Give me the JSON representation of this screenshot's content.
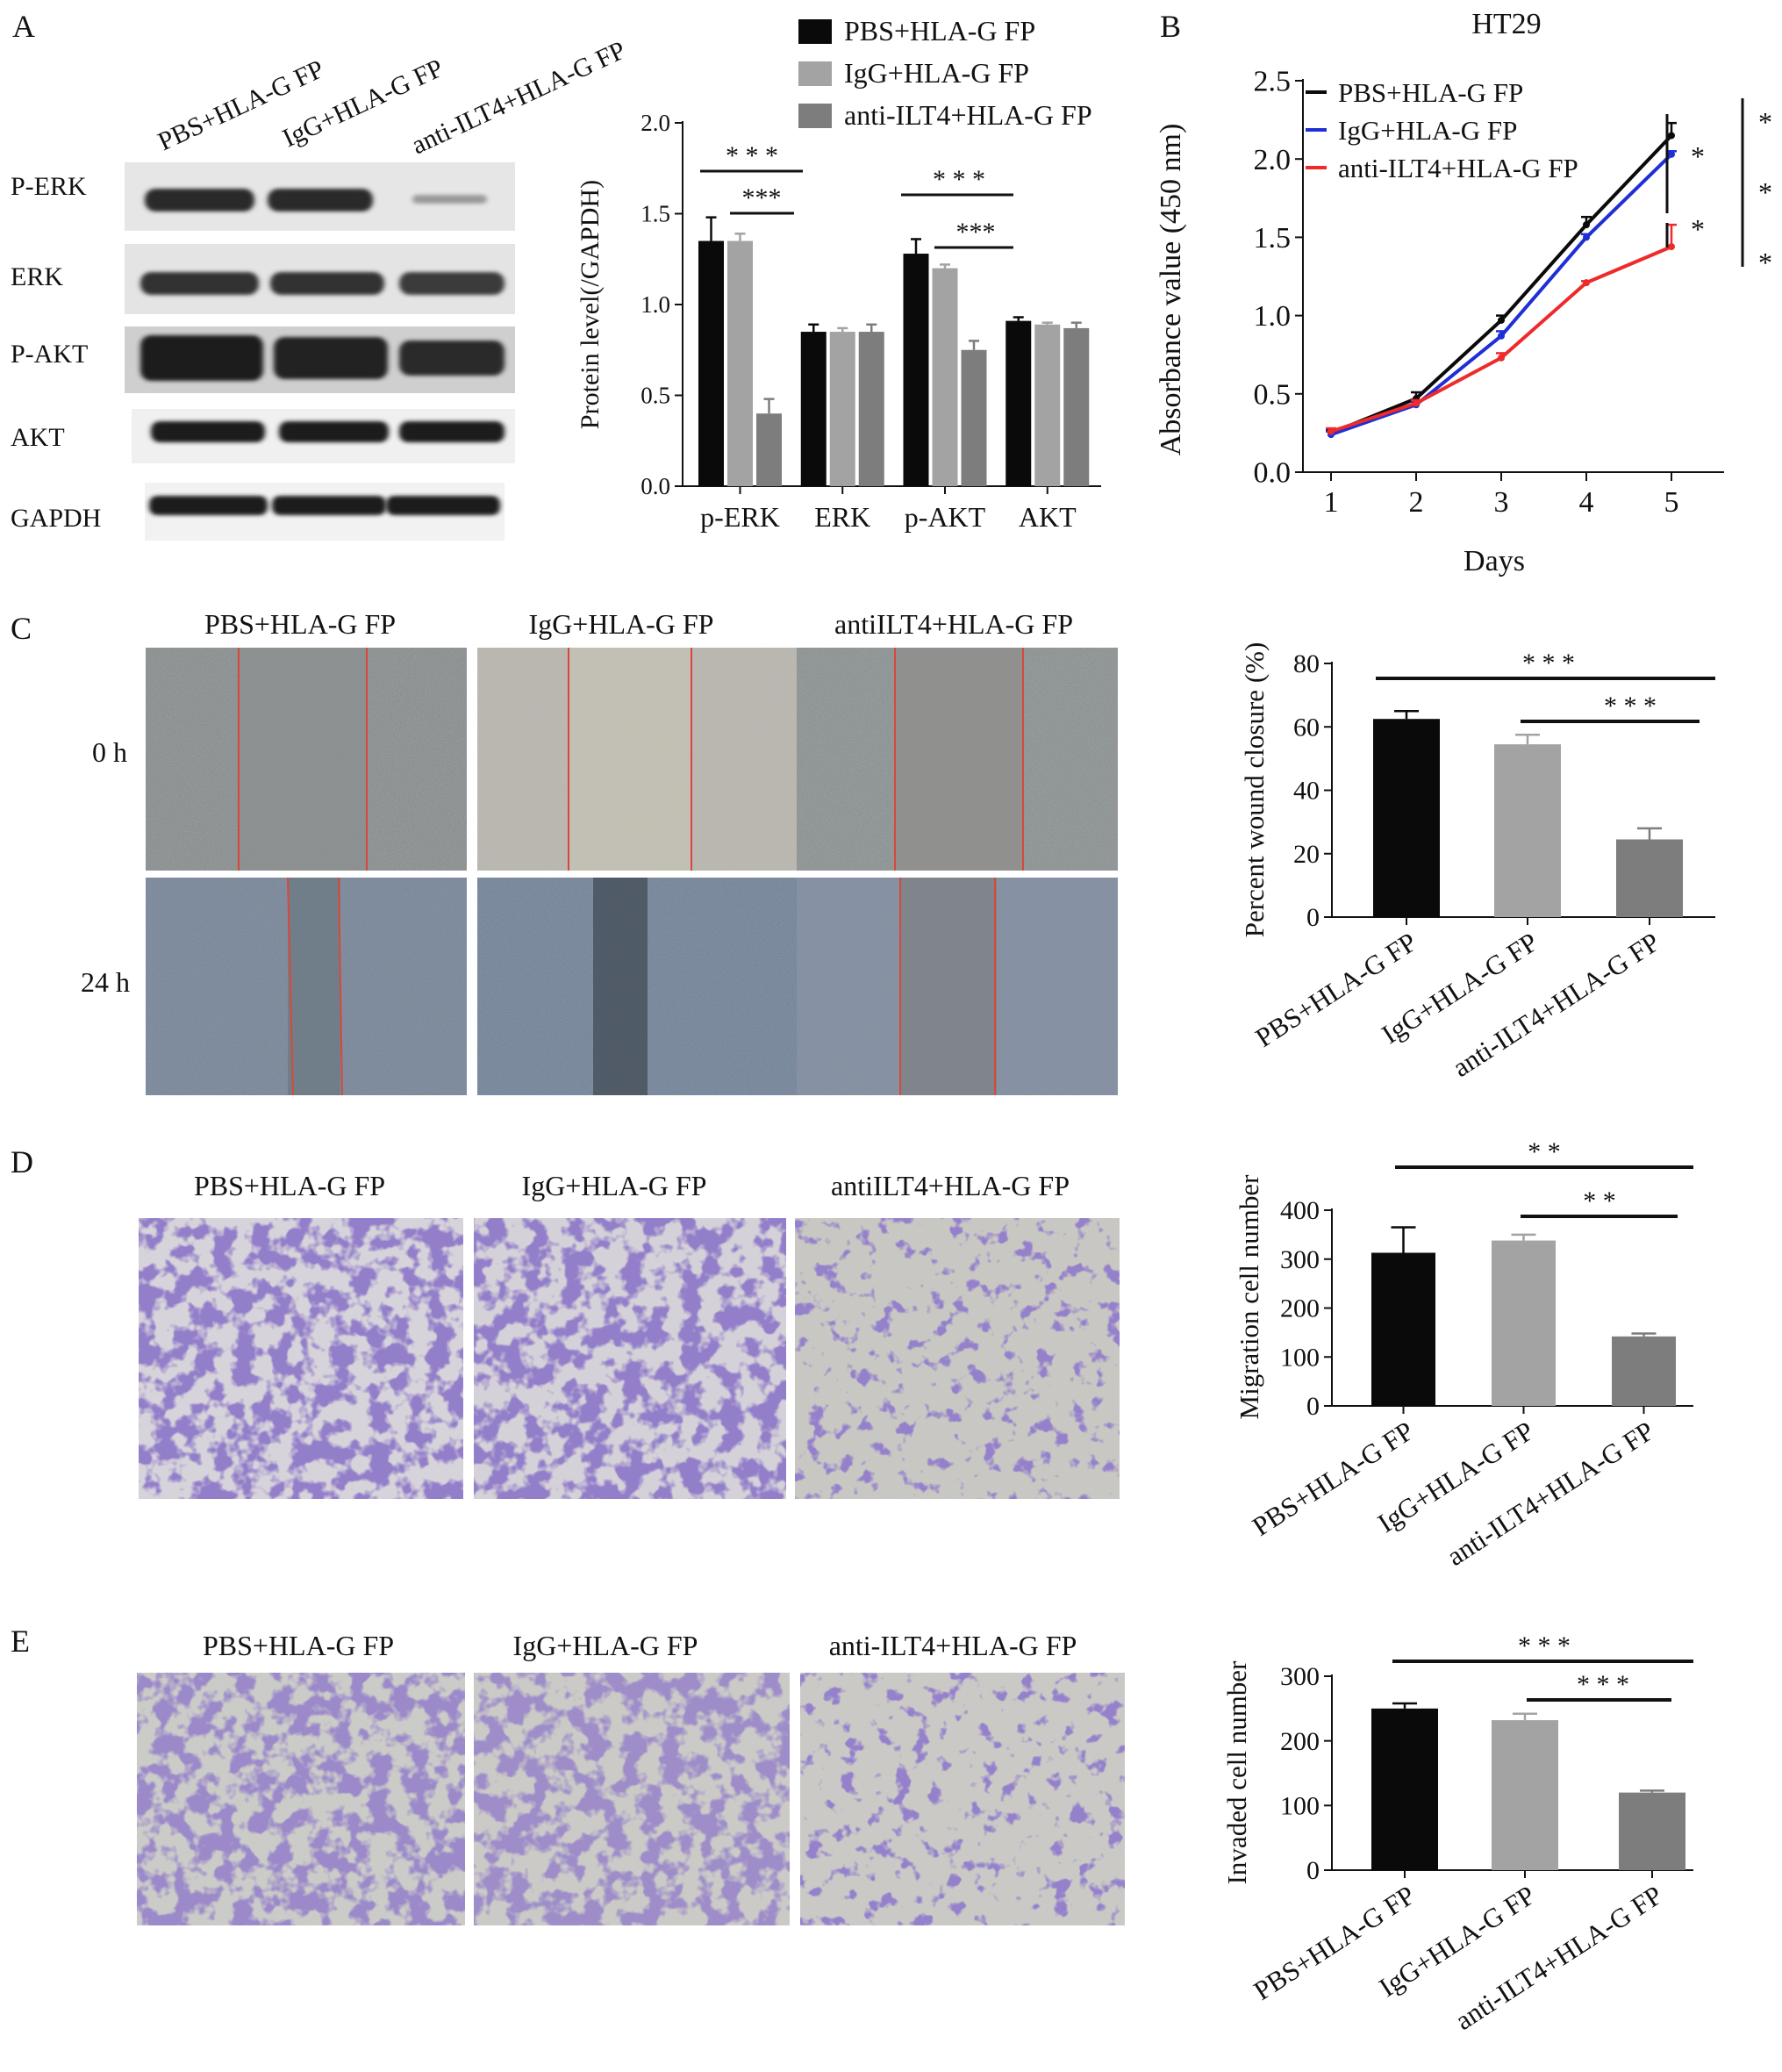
{
  "colors": {
    "black": "#0a0a0a",
    "light_gray": "#a3a3a3",
    "dark_gray": "#7d7d7d",
    "line_blue": "#1f2fd6",
    "line_red": "#ee2a2a",
    "scratch_line": "#d8483a",
    "stain_purple": "#4a3596"
  },
  "panel_letters": [
    "A",
    "B",
    "C",
    "D",
    "E"
  ],
  "panelA": {
    "blot_columns": [
      "PBS+HLA-G FP",
      "IgG+HLA-G FP",
      "anti-ILT4+HLA-G FP"
    ],
    "blot_rows": [
      "P-ERK",
      "ERK",
      "P-AKT",
      "AKT",
      "GAPDH"
    ],
    "chart_data": {
      "type": "bar",
      "categories": [
        "p-ERK",
        "ERK",
        "p-AKT",
        "AKT"
      ],
      "series": [
        {
          "name": "PBS+HLA-G FP",
          "color": "#0a0a0a",
          "values": [
            1.35,
            0.85,
            1.28,
            0.91
          ],
          "errors": [
            0.13,
            0.04,
            0.08,
            0.02
          ]
        },
        {
          "name": "IgG+HLA-G FP",
          "color": "#a3a3a3",
          "values": [
            1.35,
            0.85,
            1.2,
            0.89
          ],
          "errors": [
            0.04,
            0.02,
            0.02,
            0.01
          ]
        },
        {
          "name": "anti-ILT4+HLA-G FP",
          "color": "#7d7d7d",
          "values": [
            0.4,
            0.85,
            0.75,
            0.87
          ],
          "errors": [
            0.08,
            0.04,
            0.05,
            0.03
          ]
        }
      ],
      "ylabel": "Protein level(/GAPDH)",
      "ylim": [
        0,
        2.0
      ],
      "yticks": [
        "0.0",
        "0.5",
        "1.0",
        "1.5",
        "2.0"
      ],
      "significance": [
        "* * *",
        "***",
        "* * *",
        "***"
      ],
      "legend_position": "top-right"
    }
  },
  "panelB": {
    "chart_data": {
      "type": "line",
      "title": "HT29",
      "x": [
        1,
        2,
        3,
        4,
        5
      ],
      "xticks": [
        "1",
        "2",
        "3",
        "4",
        "5"
      ],
      "xlabel": "Days",
      "ylabel": "Absorbance value (450 nm)",
      "ylim": [
        0,
        2.5
      ],
      "yticks": [
        "0.0",
        "0.5",
        "1.0",
        "1.5",
        "2.0",
        "2.5"
      ],
      "series": [
        {
          "name": "PBS+HLA-G FP",
          "color": "#0a0a0a",
          "values": [
            0.25,
            0.47,
            0.97,
            1.58,
            2.15
          ],
          "errors": [
            0.02,
            0.04,
            0.03,
            0.05,
            0.08
          ]
        },
        {
          "name": "IgG+HLA-G FP",
          "color": "#1f2fd6",
          "values": [
            0.24,
            0.43,
            0.87,
            1.5,
            2.03
          ],
          "errors": [
            0.02,
            0.02,
            0.03,
            0.02,
            0.02
          ]
        },
        {
          "name": "anti-ILT4+HLA-G FP",
          "color": "#ee2a2a",
          "values": [
            0.26,
            0.44,
            0.73,
            1.21,
            1.44
          ],
          "errors": [
            0.02,
            0.02,
            0.03,
            0.01,
            0.14
          ]
        }
      ],
      "significance": [
        "*",
        "*",
        "*",
        "*",
        "*"
      ],
      "legend_position": "top-left"
    }
  },
  "panelC": {
    "columns": [
      "PBS+HLA-G FP",
      "IgG+HLA-G FP",
      "antiILT4+HLA-G FP"
    ],
    "rows": [
      "0 h",
      "24 h"
    ],
    "chart_data": {
      "type": "bar",
      "categories": [
        "PBS+HLA-G FP",
        "IgG+HLA-G FP",
        "anti-ILT4+HLA-G FP"
      ],
      "values": [
        62.5,
        54.5,
        24.5
      ],
      "errors": [
        2.5,
        3.0,
        3.5
      ],
      "colors": [
        "#0a0a0a",
        "#a3a3a3",
        "#7d7d7d"
      ],
      "ylabel": "Percent wound closure (%)",
      "ylim": [
        0,
        80
      ],
      "yticks": [
        "0",
        "20",
        "40",
        "60",
        "80"
      ],
      "significance": [
        "* * *",
        "* * *"
      ]
    }
  },
  "panelD": {
    "columns": [
      "PBS+HLA-G FP",
      "IgG+HLA-G FP",
      "antiILT4+HLA-G FP"
    ],
    "chart_data": {
      "type": "bar",
      "categories": [
        "PBS+HLA-G FP",
        "IgG+HLA-G FP",
        "anti-ILT4+HLA-G FP"
      ],
      "values": [
        313,
        338,
        142
      ],
      "errors": [
        52,
        12,
        6
      ],
      "colors": [
        "#0a0a0a",
        "#a3a3a3",
        "#7d7d7d"
      ],
      "ylabel": "Migration cell number",
      "ylim": [
        0,
        400
      ],
      "yticks": [
        "0",
        "100",
        "200",
        "300",
        "400"
      ],
      "significance": [
        "*        *",
        "*     *"
      ]
    }
  },
  "panelE": {
    "columns": [
      "PBS+HLA-G FP",
      "IgG+HLA-G FP",
      "anti-ILT4+HLA-G FP"
    ],
    "chart_data": {
      "type": "bar",
      "categories": [
        "PBS+HLA-G FP",
        "IgG+HLA-G FP",
        "anti-ILT4+HLA-G FP"
      ],
      "values": [
        250,
        232,
        120
      ],
      "errors": [
        8,
        10,
        3
      ],
      "colors": [
        "#0a0a0a",
        "#a3a3a3",
        "#7d7d7d"
      ],
      "ylabel": "Invaded cell number",
      "ylim": [
        0,
        300
      ],
      "yticks": [
        "0",
        "100",
        "200",
        "300"
      ],
      "significance": [
        "* * *",
        "* * *"
      ]
    }
  }
}
